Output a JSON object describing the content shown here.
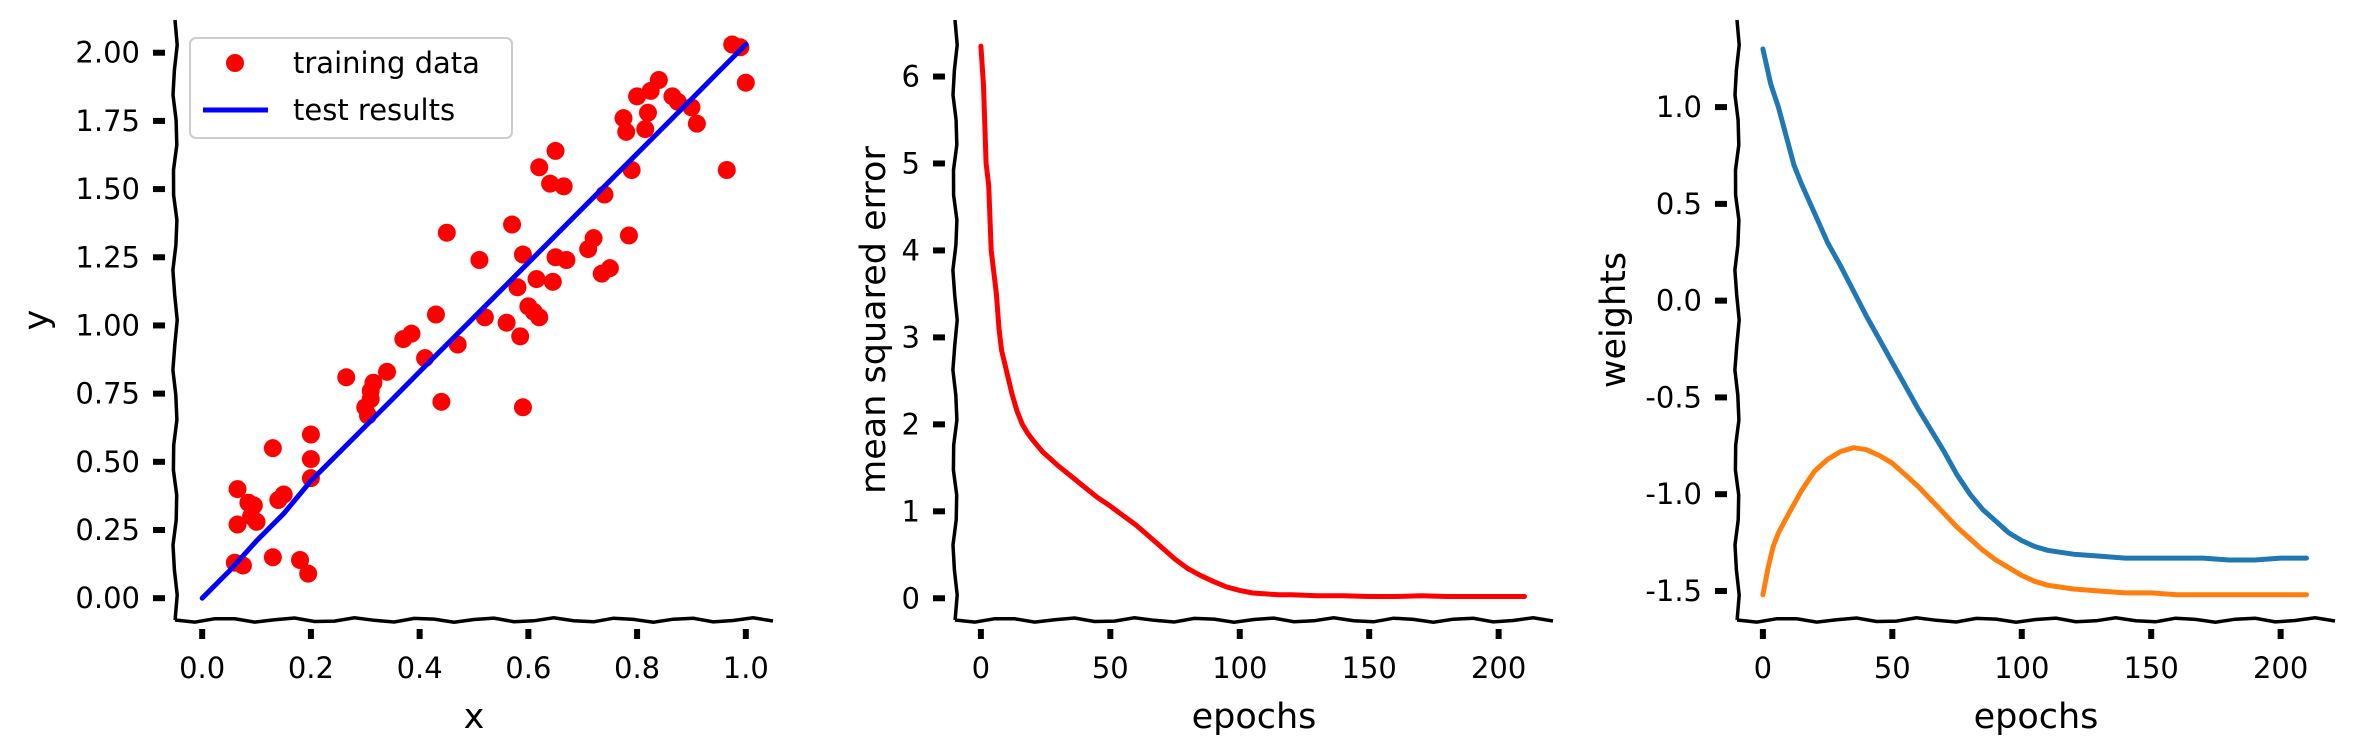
{
  "chart_data": [
    {
      "type": "scatter",
      "xlabel": "x",
      "ylabel": "y",
      "xlim": [
        -0.05,
        1.05
      ],
      "ylim": [
        -0.08,
        2.12
      ],
      "xticks": [
        0.0,
        0.2,
        0.4,
        0.6,
        0.8,
        1.0
      ],
      "xtick_labels": [
        "0.0",
        "0.2",
        "0.4",
        "0.6",
        "0.8",
        "1.0"
      ],
      "yticks": [
        0.0,
        0.25,
        0.5,
        0.75,
        1.0,
        1.25,
        1.5,
        1.75,
        2.0
      ],
      "ytick_labels": [
        "0.00",
        "0.25",
        "0.50",
        "0.75",
        "1.00",
        "1.25",
        "1.50",
        "1.75",
        "2.00"
      ],
      "legend_position": "top-left",
      "series": [
        {
          "name": "training data",
          "kind": "scatter",
          "color": "#ff0000",
          "points": [
            [
              0.06,
              0.13
            ],
            [
              0.065,
              0.4
            ],
            [
              0.065,
              0.27
            ],
            [
              0.075,
              0.12
            ],
            [
              0.085,
              0.35
            ],
            [
              0.09,
              0.3
            ],
            [
              0.095,
              0.34
            ],
            [
              0.1,
              0.28
            ],
            [
              0.13,
              0.55
            ],
            [
              0.13,
              0.15
            ],
            [
              0.14,
              0.36
            ],
            [
              0.15,
              0.38
            ],
            [
              0.18,
              0.14
            ],
            [
              0.195,
              0.09
            ],
            [
              0.2,
              0.6
            ],
            [
              0.2,
              0.51
            ],
            [
              0.2,
              0.44
            ],
            [
              0.265,
              0.81
            ],
            [
              0.3,
              0.7
            ],
            [
              0.305,
              0.67
            ],
            [
              0.31,
              0.73
            ],
            [
              0.31,
              0.76
            ],
            [
              0.315,
              0.79
            ],
            [
              0.34,
              0.83
            ],
            [
              0.37,
              0.95
            ],
            [
              0.385,
              0.97
            ],
            [
              0.41,
              0.88
            ],
            [
              0.43,
              1.04
            ],
            [
              0.44,
              0.72
            ],
            [
              0.45,
              1.34
            ],
            [
              0.47,
              0.93
            ],
            [
              0.51,
              1.24
            ],
            [
              0.52,
              1.03
            ],
            [
              0.56,
              1.01
            ],
            [
              0.57,
              1.37
            ],
            [
              0.58,
              1.14
            ],
            [
              0.585,
              0.96
            ],
            [
              0.59,
              1.26
            ],
            [
              0.59,
              0.7
            ],
            [
              0.6,
              1.07
            ],
            [
              0.61,
              1.05
            ],
            [
              0.615,
              1.17
            ],
            [
              0.62,
              1.03
            ],
            [
              0.62,
              1.58
            ],
            [
              0.64,
              1.52
            ],
            [
              0.645,
              1.16
            ],
            [
              0.65,
              1.25
            ],
            [
              0.65,
              1.64
            ],
            [
              0.665,
              1.51
            ],
            [
              0.67,
              1.24
            ],
            [
              0.71,
              1.28
            ],
            [
              0.72,
              1.32
            ],
            [
              0.735,
              1.19
            ],
            [
              0.74,
              1.48
            ],
            [
              0.75,
              1.21
            ],
            [
              0.775,
              1.76
            ],
            [
              0.78,
              1.71
            ],
            [
              0.785,
              1.33
            ],
            [
              0.79,
              1.57
            ],
            [
              0.8,
              1.84
            ],
            [
              0.815,
              1.72
            ],
            [
              0.82,
              1.78
            ],
            [
              0.825,
              1.86
            ],
            [
              0.84,
              1.9
            ],
            [
              0.865,
              1.84
            ],
            [
              0.875,
              1.82
            ],
            [
              0.9,
              1.8
            ],
            [
              0.91,
              1.74
            ],
            [
              0.965,
              1.57
            ],
            [
              0.975,
              2.03
            ],
            [
              0.99,
              2.02
            ],
            [
              1.0,
              1.89
            ]
          ]
        },
        {
          "name": "test results",
          "kind": "line",
          "color": "#0000ff",
          "x": [
            0.0,
            0.05,
            0.1,
            0.15,
            0.2,
            0.25,
            0.3,
            0.35,
            0.4,
            0.45,
            0.5,
            0.55,
            0.6,
            0.65,
            0.7,
            0.75,
            0.8,
            0.85,
            0.9,
            0.95,
            1.0
          ],
          "y": [
            0.0,
            0.1,
            0.21,
            0.31,
            0.43,
            0.53,
            0.63,
            0.73,
            0.83,
            0.93,
            1.03,
            1.13,
            1.23,
            1.33,
            1.43,
            1.53,
            1.63,
            1.73,
            1.83,
            1.93,
            2.03
          ]
        }
      ]
    },
    {
      "type": "line",
      "xlabel": "epochs",
      "ylabel": "mean squared error",
      "xlim": [
        -10,
        221
      ],
      "ylim": [
        -0.25,
        6.65
      ],
      "xticks": [
        0,
        50,
        100,
        150,
        200
      ],
      "xtick_labels": [
        "0",
        "50",
        "100",
        "150",
        "200"
      ],
      "yticks": [
        0,
        1,
        2,
        3,
        4,
        5,
        6
      ],
      "ytick_labels": [
        "0",
        "1",
        "2",
        "3",
        "4",
        "5",
        "6"
      ],
      "series": [
        {
          "color": "#ff0000",
          "x": [
            0,
            1,
            2,
            3,
            4,
            5,
            6,
            7,
            8,
            10,
            12,
            14,
            16,
            18,
            20,
            22,
            24,
            27,
            30,
            35,
            40,
            45,
            50,
            55,
            60,
            65,
            70,
            75,
            80,
            85,
            90,
            95,
            100,
            105,
            110,
            115,
            120,
            130,
            140,
            150,
            160,
            170,
            180,
            190,
            200,
            210
          ],
          "y": [
            6.35,
            5.9,
            5.0,
            4.75,
            4.0,
            3.75,
            3.5,
            3.1,
            2.85,
            2.6,
            2.35,
            2.15,
            2.0,
            1.9,
            1.82,
            1.75,
            1.68,
            1.6,
            1.52,
            1.4,
            1.28,
            1.16,
            1.06,
            0.95,
            0.84,
            0.71,
            0.58,
            0.45,
            0.34,
            0.26,
            0.19,
            0.13,
            0.09,
            0.06,
            0.05,
            0.04,
            0.04,
            0.03,
            0.03,
            0.02,
            0.02,
            0.03,
            0.02,
            0.02,
            0.02,
            0.02
          ]
        }
      ]
    },
    {
      "type": "line",
      "xlabel": "epochs",
      "ylabel": "weights",
      "xlim": [
        -10,
        221
      ],
      "ylim": [
        -1.65,
        1.45
      ],
      "xticks": [
        0,
        50,
        100,
        150,
        200
      ],
      "xtick_labels": [
        "0",
        "50",
        "100",
        "150",
        "200"
      ],
      "yticks": [
        1.0,
        0.5,
        0.0,
        -0.5,
        -1.0,
        -1.5
      ],
      "ytick_labels": [
        "1.0",
        "0.5",
        "0.0",
        "-0.5",
        "-1.0",
        "-1.5"
      ],
      "series": [
        {
          "color": "#1f77b4",
          "x": [
            0,
            3,
            6,
            9,
            12,
            15,
            20,
            25,
            30,
            35,
            40,
            45,
            50,
            55,
            60,
            65,
            70,
            75,
            80,
            85,
            90,
            95,
            100,
            105,
            110,
            115,
            120,
            130,
            140,
            150,
            160,
            170,
            180,
            190,
            200,
            210
          ],
          "y": [
            1.3,
            1.12,
            1.0,
            0.85,
            0.7,
            0.6,
            0.45,
            0.3,
            0.18,
            0.05,
            -0.08,
            -0.2,
            -0.32,
            -0.44,
            -0.56,
            -0.67,
            -0.78,
            -0.9,
            -1.0,
            -1.08,
            -1.14,
            -1.2,
            -1.24,
            -1.27,
            -1.29,
            -1.3,
            -1.31,
            -1.32,
            -1.33,
            -1.33,
            -1.33,
            -1.33,
            -1.34,
            -1.34,
            -1.33,
            -1.33
          ]
        },
        {
          "color": "#ff7f0e",
          "x": [
            0,
            2,
            4,
            6,
            8,
            10,
            15,
            20,
            25,
            30,
            35,
            40,
            45,
            50,
            55,
            60,
            65,
            70,
            75,
            80,
            85,
            90,
            95,
            100,
            105,
            110,
            115,
            120,
            130,
            140,
            150,
            160,
            170,
            180,
            190,
            200,
            210
          ],
          "y": [
            -1.52,
            -1.38,
            -1.27,
            -1.2,
            -1.15,
            -1.1,
            -0.98,
            -0.88,
            -0.82,
            -0.78,
            -0.76,
            -0.77,
            -0.8,
            -0.84,
            -0.9,
            -0.96,
            -1.03,
            -1.1,
            -1.17,
            -1.23,
            -1.29,
            -1.34,
            -1.38,
            -1.42,
            -1.45,
            -1.47,
            -1.48,
            -1.49,
            -1.5,
            -1.51,
            -1.51,
            -1.52,
            -1.52,
            -1.52,
            -1.52,
            -1.52,
            -1.52
          ]
        }
      ]
    }
  ]
}
